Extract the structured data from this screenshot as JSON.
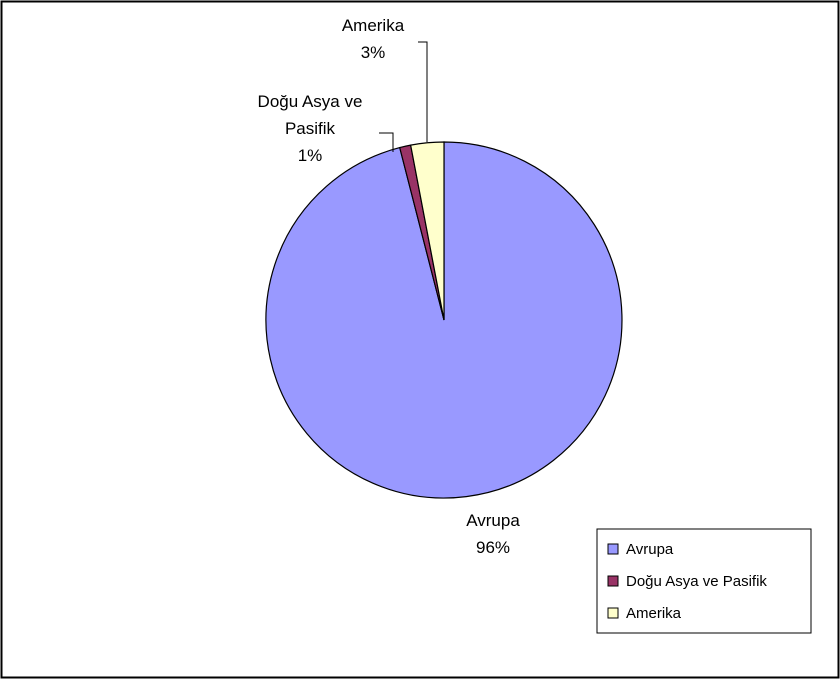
{
  "chart_data": {
    "type": "pie",
    "title": "",
    "slices": [
      {
        "label": "Avrupa",
        "value": 96,
        "value_label": "96%",
        "label_lines": [
          "Avrupa",
          "96%"
        ],
        "color": "#9999ff"
      },
      {
        "label": "Doğu Asya ve Pasifik",
        "value": 1,
        "value_label": "1%",
        "label_lines": [
          "Doğu Asya ve",
          "Pasifik",
          "1%"
        ],
        "color": "#993366"
      },
      {
        "label": "Amerika",
        "value": 3,
        "value_label": "3%",
        "label_lines": [
          "Amerika",
          "3%"
        ],
        "color": "#ffffcc"
      }
    ],
    "legend": {
      "placement": "bottom-right",
      "entries": [
        "Avrupa",
        "Doğu Asya ve Pasifik",
        "Amerika"
      ]
    },
    "start_angle": "12 o'clock",
    "direction": "clockwise"
  }
}
